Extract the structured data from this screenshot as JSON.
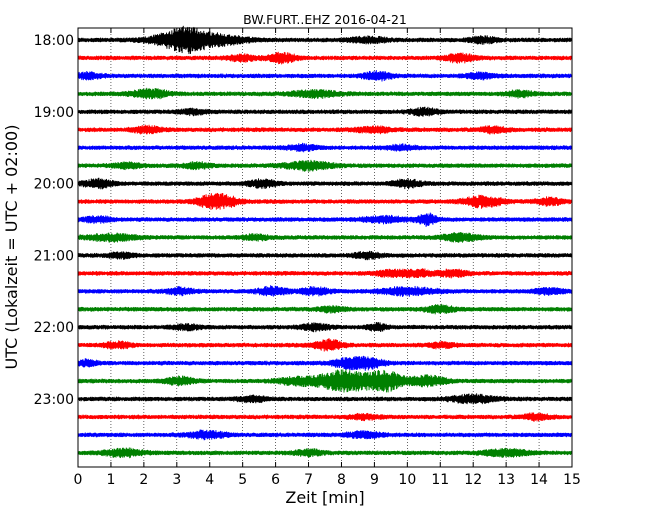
{
  "chart_data": {
    "type": "line",
    "title": "BW.FURT..EHZ 2016-04-21",
    "xlabel": "Zeit  [min]",
    "ylabel": "UTC (Lokalzeit = UTC + 02:00)",
    "x_ticks": [
      0,
      1,
      2,
      3,
      4,
      5,
      6,
      7,
      8,
      9,
      10,
      11,
      12,
      13,
      14,
      15
    ],
    "x_tick_labels": [
      "0",
      "1",
      "2",
      "3",
      "4",
      "5",
      "6",
      "7",
      "8",
      "9",
      "10",
      "11",
      "12",
      "13",
      "14",
      "15"
    ],
    "xlim": [
      0,
      15
    ],
    "y_tick_labels": [
      "18:00",
      "19:00",
      "20:00",
      "21:00",
      "22:00",
      "23:00"
    ],
    "grid": "vertical dotted",
    "trace_colors": [
      "#000000",
      "#ff0000",
      "#0000ff",
      "#008000"
    ],
    "row_interval_min": 15,
    "traces": [
      {
        "start": "18:00",
        "color": "#000000",
        "bursts": [
          [
            3.3,
            1.0,
            0.4
          ],
          [
            4.2,
            0.6,
            0.6
          ],
          [
            2.7,
            0.45,
            0.5
          ],
          [
            8.8,
            0.3,
            0.4
          ],
          [
            12.3,
            0.3,
            0.3
          ]
        ]
      },
      {
        "start": "18:15",
        "color": "#ff0000",
        "bursts": [
          [
            6.2,
            0.5,
            0.3
          ],
          [
            11.6,
            0.45,
            0.3
          ],
          [
            5.0,
            0.3,
            0.3
          ]
        ]
      },
      {
        "start": "18:30",
        "color": "#0000ff",
        "bursts": [
          [
            9.1,
            0.45,
            0.3
          ],
          [
            0.3,
            0.3,
            0.3
          ],
          [
            12.2,
            0.3,
            0.3
          ]
        ]
      },
      {
        "start": "18:45",
        "color": "#008000",
        "bursts": [
          [
            2.2,
            0.45,
            0.4
          ],
          [
            7.2,
            0.35,
            0.5
          ],
          [
            13.4,
            0.3,
            0.3
          ]
        ]
      },
      {
        "start": "19:00",
        "color": "#000000",
        "bursts": [
          [
            10.5,
            0.35,
            0.3
          ],
          [
            3.5,
            0.25,
            0.3
          ]
        ]
      },
      {
        "start": "19:15",
        "color": "#ff0000",
        "bursts": [
          [
            2.1,
            0.35,
            0.3
          ],
          [
            9.0,
            0.3,
            0.4
          ],
          [
            12.6,
            0.3,
            0.3
          ]
        ]
      },
      {
        "start": "19:30",
        "color": "#0000ff",
        "bursts": [
          [
            6.8,
            0.3,
            0.3
          ],
          [
            9.8,
            0.25,
            0.3
          ]
        ]
      },
      {
        "start": "19:45",
        "color": "#008000",
        "bursts": [
          [
            7.0,
            0.45,
            0.5
          ],
          [
            3.6,
            0.3,
            0.3
          ],
          [
            1.5,
            0.25,
            0.3
          ]
        ]
      },
      {
        "start": "20:00",
        "color": "#000000",
        "bursts": [
          [
            0.6,
            0.45,
            0.3
          ],
          [
            5.6,
            0.4,
            0.3
          ],
          [
            10.0,
            0.4,
            0.3
          ]
        ]
      },
      {
        "start": "20:15",
        "color": "#ff0000",
        "bursts": [
          [
            4.0,
            0.6,
            0.3
          ],
          [
            4.5,
            0.5,
            0.3
          ],
          [
            12.3,
            0.6,
            0.4
          ],
          [
            14.3,
            0.35,
            0.3
          ]
        ]
      },
      {
        "start": "20:30",
        "color": "#0000ff",
        "bursts": [
          [
            10.6,
            0.6,
            0.2
          ],
          [
            9.3,
            0.3,
            0.5
          ],
          [
            0.6,
            0.3,
            0.3
          ]
        ]
      },
      {
        "start": "20:45",
        "color": "#008000",
        "bursts": [
          [
            1.0,
            0.35,
            0.5
          ],
          [
            11.6,
            0.4,
            0.4
          ],
          [
            5.4,
            0.25,
            0.3
          ]
        ]
      },
      {
        "start": "21:00",
        "color": "#000000",
        "bursts": [
          [
            8.8,
            0.3,
            0.3
          ],
          [
            1.3,
            0.25,
            0.3
          ]
        ]
      },
      {
        "start": "21:15",
        "color": "#ff0000",
        "bursts": [
          [
            9.5,
            0.35,
            0.3
          ],
          [
            10.3,
            0.4,
            0.3
          ],
          [
            11.4,
            0.35,
            0.3
          ]
        ]
      },
      {
        "start": "21:30",
        "color": "#0000ff",
        "bursts": [
          [
            3.1,
            0.35,
            0.3
          ],
          [
            5.9,
            0.45,
            0.3
          ],
          [
            7.2,
            0.4,
            0.3
          ],
          [
            10.0,
            0.4,
            0.6
          ],
          [
            14.3,
            0.3,
            0.3
          ]
        ]
      },
      {
        "start": "21:45",
        "color": "#008000",
        "bursts": [
          [
            11.0,
            0.4,
            0.3
          ],
          [
            7.7,
            0.25,
            0.3
          ]
        ]
      },
      {
        "start": "22:00",
        "color": "#000000",
        "bursts": [
          [
            7.2,
            0.35,
            0.3
          ],
          [
            9.1,
            0.35,
            0.2
          ],
          [
            3.3,
            0.25,
            0.3
          ]
        ]
      },
      {
        "start": "22:15",
        "color": "#ff0000",
        "bursts": [
          [
            7.6,
            0.55,
            0.3
          ],
          [
            1.2,
            0.3,
            0.3
          ],
          [
            11.0,
            0.25,
            0.3
          ]
        ]
      },
      {
        "start": "22:30",
        "color": "#0000ff",
        "bursts": [
          [
            8.3,
            0.55,
            0.4
          ],
          [
            8.9,
            0.4,
            0.3
          ],
          [
            0.3,
            0.3,
            0.2
          ]
        ]
      },
      {
        "start": "22:45",
        "color": "#008000",
        "bursts": [
          [
            8.1,
            1.15,
            0.6
          ],
          [
            9.35,
            1.0,
            0.35
          ],
          [
            10.6,
            0.55,
            0.4
          ],
          [
            3.1,
            0.4,
            0.3
          ],
          [
            6.6,
            0.35,
            0.4
          ]
        ]
      },
      {
        "start": "23:00",
        "color": "#000000",
        "bursts": [
          [
            12.0,
            0.4,
            0.5
          ],
          [
            5.3,
            0.3,
            0.3
          ]
        ]
      },
      {
        "start": "23:15",
        "color": "#ff0000",
        "bursts": [
          [
            13.9,
            0.3,
            0.3
          ],
          [
            8.7,
            0.25,
            0.3
          ]
        ]
      },
      {
        "start": "23:30",
        "color": "#0000ff",
        "bursts": [
          [
            3.9,
            0.4,
            0.4
          ],
          [
            8.7,
            0.3,
            0.4
          ]
        ]
      },
      {
        "start": "23:45",
        "color": "#008000",
        "bursts": [
          [
            1.4,
            0.4,
            0.4
          ],
          [
            13.0,
            0.35,
            0.5
          ],
          [
            7.0,
            0.3,
            0.3
          ]
        ]
      }
    ]
  }
}
